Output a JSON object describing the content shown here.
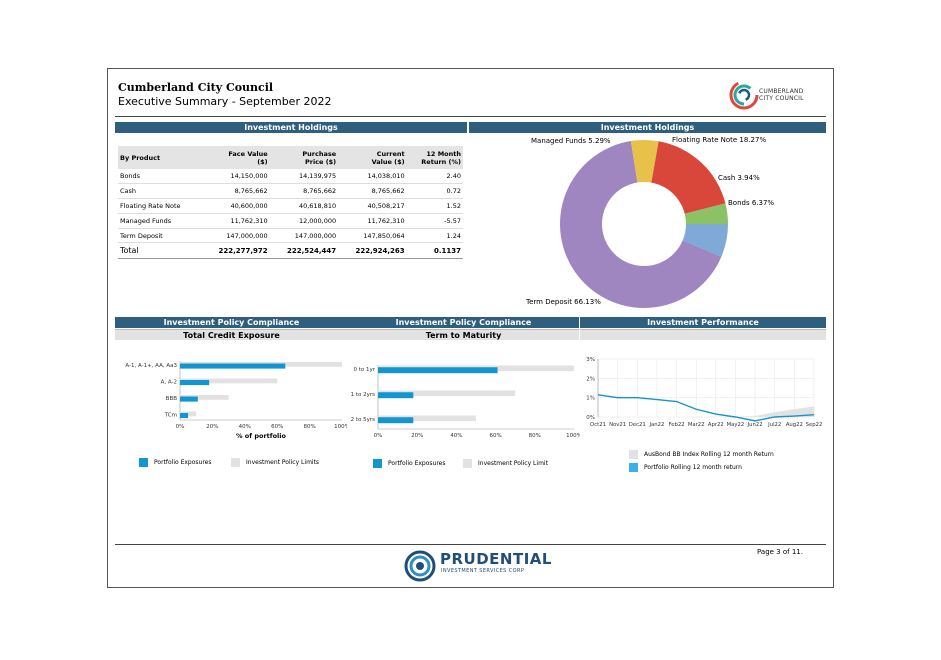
{
  "header": {
    "title": "Cumberland City Council",
    "subtitle": "Executive Summary - September 2022",
    "logo_text_line1": "CUMBERLAND",
    "logo_text_line2": "CITY COUNCIL"
  },
  "sections": {
    "holdings_table_title": "Investment Holdings",
    "holdings_chart_title": "Investment Holdings",
    "compliance_credit_title": "Investment Policy Compliance",
    "compliance_maturity_title": "Investment Policy Compliance",
    "performance_title": "Investment Performance",
    "credit_subtitle": "Total Credit Exposure",
    "maturity_subtitle": "Term to Maturity"
  },
  "holdings_table": {
    "columns": [
      "By Product",
      "Face Value ($)",
      "Purchase Price ($)",
      "Current Value ($)",
      "12 Month Return (%)"
    ],
    "columns_split": [
      [
        "By Product"
      ],
      [
        "Face Value",
        "($)"
      ],
      [
        "Purchase",
        "Price ($)"
      ],
      [
        "Current",
        "Value ($)"
      ],
      [
        "12 Month",
        "Return (%)"
      ]
    ],
    "rows": [
      [
        "Bonds",
        "14,150,000",
        "14,139,975",
        "14,038,010",
        "2.40"
      ],
      [
        "Cash",
        "8,765,662",
        "8,765,662",
        "8,765,662",
        "0.72"
      ],
      [
        "Floating Rate Note",
        "40,600,000",
        "40,618,810",
        "40,508,217",
        "1.52"
      ],
      [
        "Managed Funds",
        "11,762,310",
        "12,000,000",
        "11,762,310",
        "-5.57"
      ],
      [
        "Term Deposit",
        "147,000,000",
        "147,000,000",
        "147,850,064",
        "1.24"
      ]
    ],
    "total": [
      "Total",
      "222,277,972",
      "222,524,447",
      "222,924,263",
      "0.1137"
    ]
  },
  "chart_data": [
    {
      "type": "pie",
      "variant": "donut",
      "title": "Investment Holdings",
      "slices": [
        {
          "name": "Bonds",
          "value": 6.37,
          "label": "Bonds 6.37%",
          "color": "#7fa9d6"
        },
        {
          "name": "Term Deposit",
          "value": 66.13,
          "label": "Term Deposit 66.13%",
          "color": "#a086c0"
        },
        {
          "name": "Managed Funds",
          "value": 5.29,
          "label": "Managed Funds 5.29%",
          "color": "#e8c14a"
        },
        {
          "name": "Floating Rate Note",
          "value": 18.27,
          "label": "Floating Rate Note 18.27%",
          "color": "#d9473b"
        },
        {
          "name": "Cash",
          "value": 3.94,
          "label": "Cash 3.94%",
          "color": "#8cc265"
        }
      ]
    },
    {
      "type": "bar",
      "orientation": "horizontal",
      "title": "Total Credit Exposure",
      "xlabel": "% of portfolio",
      "categories": [
        "A-1, A-1+, AA, Aa3",
        "A, A-2",
        "BBB",
        "TCm"
      ],
      "series": [
        {
          "name": "Portfolio Exposures",
          "values": [
            65,
            18,
            11,
            5
          ],
          "color": "#1296d0"
        },
        {
          "name": "Investment Policy Limits",
          "values": [
            100,
            60,
            30,
            10
          ],
          "color": "#e2e2e2"
        }
      ],
      "xticks": [
        "0%",
        "20%",
        "40%",
        "60%",
        "80%",
        "100%"
      ],
      "xlim": [
        0,
        100
      ],
      "legend": "bottom"
    },
    {
      "type": "bar",
      "orientation": "horizontal",
      "title": "Term to Maturity",
      "categories": [
        "0 to 1yr",
        "1 to 2yrs",
        "2 to 5yrs"
      ],
      "series": [
        {
          "name": "Portfolio Exposures",
          "values": [
            61,
            18,
            18
          ],
          "color": "#1296d0"
        },
        {
          "name": "Investment Policy Limit",
          "values": [
            100,
            70,
            50
          ],
          "color": "#e2e2e2"
        }
      ],
      "xticks": [
        "0%",
        "20%",
        "40%",
        "60%",
        "80%",
        "100%"
      ],
      "xlim": [
        0,
        100
      ],
      "legend": "bottom"
    },
    {
      "type": "line",
      "title": "Investment Performance",
      "x": [
        "Oct21",
        "Nov21",
        "Dec21",
        "Jan22",
        "Feb22",
        "Mar22",
        "Apr22",
        "May22",
        "Jun22",
        "Jul22",
        "Aug22",
        "Sep22"
      ],
      "series": [
        {
          "name": "AusBond BB Index Rolling 12 month Return",
          "kind": "area",
          "color": "#e2e2e2",
          "values": [
            0.0,
            0.0,
            0.0,
            0.0,
            0.0,
            0.0,
            0.0,
            0.0,
            0.05,
            0.25,
            0.4,
            0.55
          ]
        },
        {
          "name": "Portfolio Rolling 12 month return",
          "kind": "line",
          "color": "#1296d0",
          "values": [
            1.15,
            1.0,
            1.0,
            0.9,
            0.8,
            0.4,
            0.15,
            0.0,
            -0.2,
            0.0,
            0.05,
            0.12
          ]
        }
      ],
      "yticks": [
        "0%",
        "1%",
        "2%",
        "3%"
      ],
      "ylim": [
        0,
        3
      ],
      "grid": true,
      "legend": "bottom"
    }
  ],
  "legends": {
    "credit": [
      "Portfolio Exposures",
      "Investment Policy Limits"
    ],
    "maturity": [
      "Portfolio Exposures",
      "Investment Policy Limit"
    ],
    "performance": [
      "AusBond BB Index Rolling 12 month Return",
      "Portfolio Rolling 12 month return"
    ]
  },
  "footer": {
    "page_number": "Page 3 of 11.",
    "brand_name": "PRUDENTIAL",
    "brand_sub": "INVESTMENT SERVICES CORP"
  }
}
